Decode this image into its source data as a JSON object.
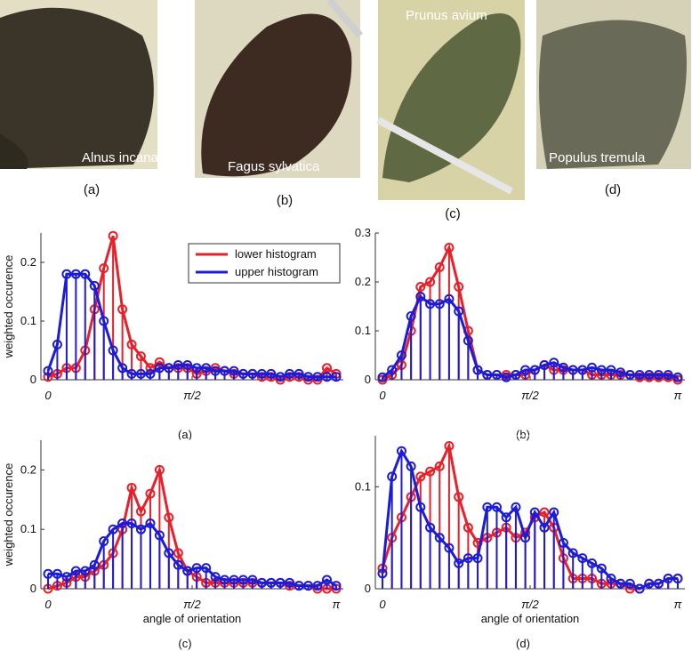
{
  "photos": [
    {
      "species": "Alnus incana",
      "caption": "(a)"
    },
    {
      "species": "Fagus sylvatica",
      "caption": "(b)"
    },
    {
      "species": "Prunus avium",
      "caption": "(c)"
    },
    {
      "species": "Populus tremula",
      "caption": "(d)"
    }
  ],
  "chart_data": [
    {
      "type": "stem",
      "caption": "(a)",
      "ylabel": "weighted occurence",
      "legend": "top-right",
      "x": [
        0,
        0.101,
        0.203,
        0.304,
        0.405,
        0.507,
        0.608,
        0.709,
        0.811,
        0.912,
        1.013,
        1.115,
        1.216,
        1.317,
        1.419,
        1.52,
        1.621,
        1.723,
        1.824,
        1.925,
        2.027,
        2.128,
        2.229,
        2.331,
        2.432,
        2.533,
        2.634,
        2.736,
        2.837,
        2.938,
        3.04,
        3.142
      ],
      "xlim": [
        0,
        3.142
      ],
      "xticks": [
        0,
        {
          "value": 1.571,
          "label": "π/2"
        }
      ],
      "ylim": [
        0,
        0.25
      ],
      "yticks": [
        0,
        0.1,
        0.2
      ],
      "series": [
        {
          "name": "lower histogram",
          "color": "#e8202a",
          "values": [
            0.005,
            0.01,
            0.02,
            0.02,
            0.05,
            0.12,
            0.19,
            0.245,
            0.12,
            0.06,
            0.04,
            0.02,
            0.03,
            0.02,
            0.02,
            0.02,
            0.01,
            0.015,
            0.02,
            0.015,
            0.01,
            0.01,
            0.01,
            0.005,
            0.005,
            0,
            0.005,
            0.005,
            0,
            0,
            0.02,
            0.01
          ]
        },
        {
          "name": "upper histogram",
          "color": "#1c1cd8",
          "values": [
            0.015,
            0.06,
            0.18,
            0.18,
            0.18,
            0.16,
            0.1,
            0.05,
            0.02,
            0.01,
            0.01,
            0.01,
            0.02,
            0.02,
            0.025,
            0.025,
            0.02,
            0.02,
            0.015,
            0.015,
            0.015,
            0.01,
            0.01,
            0.01,
            0.01,
            0.005,
            0.01,
            0.01,
            0.005,
            0.005,
            0.005,
            0.005
          ]
        }
      ]
    },
    {
      "type": "stem",
      "caption": "(b)",
      "x": [
        0,
        0.101,
        0.203,
        0.304,
        0.405,
        0.507,
        0.608,
        0.709,
        0.811,
        0.912,
        1.013,
        1.115,
        1.216,
        1.317,
        1.419,
        1.52,
        1.621,
        1.723,
        1.824,
        1.925,
        2.027,
        2.128,
        2.229,
        2.331,
        2.432,
        2.533,
        2.634,
        2.736,
        2.837,
        2.938,
        3.04,
        3.142
      ],
      "xlim": [
        0,
        3.142
      ],
      "xticks": [
        0,
        {
          "value": 1.571,
          "label": "π/2"
        },
        {
          "value": 3.142,
          "label": "π"
        }
      ],
      "ylim": [
        0,
        0.3
      ],
      "yticks": [
        0,
        0.1,
        0.2,
        0.3
      ],
      "series": [
        {
          "color": "#e8202a",
          "values": [
            0,
            0.01,
            0.03,
            0.1,
            0.19,
            0.2,
            0.23,
            0.27,
            0.19,
            0.1,
            0.02,
            0.01,
            0.01,
            0.01,
            0.01,
            0.01,
            0.02,
            0.03,
            0.02,
            0.02,
            0.02,
            0.02,
            0.01,
            0.01,
            0.01,
            0.01,
            0.01,
            0.005,
            0.005,
            0.005,
            0.005,
            0
          ]
        },
        {
          "color": "#1c1cd8",
          "values": [
            0.005,
            0.02,
            0.05,
            0.13,
            0.17,
            0.155,
            0.155,
            0.165,
            0.14,
            0.08,
            0.02,
            0.01,
            0.01,
            0.005,
            0.01,
            0.02,
            0.02,
            0.03,
            0.035,
            0.025,
            0.02,
            0.02,
            0.025,
            0.02,
            0.02,
            0.015,
            0.01,
            0.01,
            0.01,
            0.01,
            0.01,
            0.005
          ]
        }
      ]
    },
    {
      "type": "stem",
      "caption": "(c)",
      "ylabel": "weighted occurence",
      "xlabel": "angle of orientation",
      "x": [
        0,
        0.101,
        0.203,
        0.304,
        0.405,
        0.507,
        0.608,
        0.709,
        0.811,
        0.912,
        1.013,
        1.115,
        1.216,
        1.317,
        1.419,
        1.52,
        1.621,
        1.723,
        1.824,
        1.925,
        2.027,
        2.128,
        2.229,
        2.331,
        2.432,
        2.533,
        2.634,
        2.736,
        2.837,
        2.938,
        3.04,
        3.142
      ],
      "xlim": [
        0,
        3.142
      ],
      "xticks": [
        0,
        {
          "value": 1.571,
          "label": "π/2"
        },
        {
          "value": 3.142,
          "label": "π"
        }
      ],
      "ylim": [
        0,
        0.25
      ],
      "yticks": [
        0,
        0.1,
        0.2
      ],
      "series": [
        {
          "color": "#e8202a",
          "values": [
            0,
            0.005,
            0.01,
            0.02,
            0.02,
            0.03,
            0.04,
            0.06,
            0.1,
            0.17,
            0.13,
            0.16,
            0.2,
            0.12,
            0.06,
            0.03,
            0.02,
            0.01,
            0.01,
            0.01,
            0.01,
            0.01,
            0.01,
            0.01,
            0.01,
            0.01,
            0.005,
            0.005,
            0.005,
            0,
            0,
            0
          ]
        },
        {
          "color": "#1c1cd8",
          "values": [
            0.025,
            0.025,
            0.02,
            0.03,
            0.03,
            0.04,
            0.08,
            0.1,
            0.11,
            0.11,
            0.1,
            0.11,
            0.09,
            0.06,
            0.04,
            0.03,
            0.035,
            0.035,
            0.02,
            0.015,
            0.015,
            0.015,
            0.015,
            0.01,
            0.01,
            0.01,
            0.01,
            0.005,
            0.005,
            0.005,
            0.015,
            0.005
          ]
        }
      ]
    },
    {
      "type": "stem",
      "caption": "(d)",
      "xlabel": "angle of orientation",
      "x": [
        0,
        0.101,
        0.203,
        0.304,
        0.405,
        0.507,
        0.608,
        0.709,
        0.811,
        0.912,
        1.013,
        1.115,
        1.216,
        1.317,
        1.419,
        1.52,
        1.621,
        1.723,
        1.824,
        1.925,
        2.027,
        2.128,
        2.229,
        2.331,
        2.432,
        2.533,
        2.634,
        2.736,
        2.837,
        2.938,
        3.04,
        3.142
      ],
      "xlim": [
        0,
        3.142
      ],
      "xticks": [
        0,
        {
          "value": 1.571,
          "label": "π/2"
        },
        {
          "value": 3.142,
          "label": "π"
        }
      ],
      "ylim": [
        0,
        0.15
      ],
      "yticks": [
        0,
        0.1
      ],
      "series": [
        {
          "color": "#e8202a",
          "values": [
            0.02,
            0.05,
            0.07,
            0.09,
            0.11,
            0.115,
            0.12,
            0.14,
            0.09,
            0.06,
            0.045,
            0.05,
            0.055,
            0.06,
            0.05,
            0.055,
            0.07,
            0.075,
            0.06,
            0.03,
            0.01,
            0.01,
            0.01,
            0.005,
            0.005,
            0.005,
            0,
            0,
            0.005,
            0.005,
            0.01,
            0.01
          ]
        },
        {
          "color": "#1c1cd8",
          "values": [
            0.015,
            0.11,
            0.135,
            0.12,
            0.08,
            0.06,
            0.05,
            0.04,
            0.025,
            0.03,
            0.03,
            0.08,
            0.08,
            0.07,
            0.08,
            0.05,
            0.075,
            0.06,
            0.075,
            0.045,
            0.035,
            0.03,
            0.025,
            0.02,
            0.01,
            0.005,
            0.005,
            0,
            0.005,
            0.005,
            0.01,
            0.01
          ]
        }
      ]
    }
  ]
}
